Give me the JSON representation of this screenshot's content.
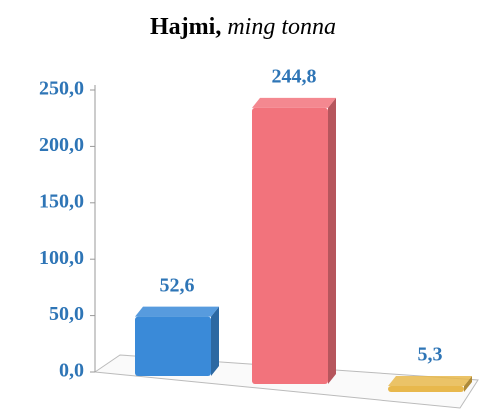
{
  "chart_data": {
    "type": "bar",
    "title": "Hajmi,",
    "subtitle": "ming tonna",
    "categories": [
      null,
      null,
      null
    ],
    "values": [
      52.6,
      244.8,
      5.3
    ],
    "value_labels": [
      "52,6",
      "244,8",
      "5,3"
    ],
    "colors": [
      "#3a8ad8",
      "#f2737c",
      "#e8b84c"
    ],
    "ylim": [
      0,
      250
    ],
    "yticks": [
      {
        "value": 0,
        "label": "0,0"
      },
      {
        "value": 50,
        "label": "50,0"
      },
      {
        "value": 100,
        "label": "100,0"
      },
      {
        "value": 150,
        "label": "150,0"
      },
      {
        "value": 200,
        "label": "200,0"
      },
      {
        "value": 250,
        "label": "250,0"
      }
    ],
    "grid": false
  }
}
